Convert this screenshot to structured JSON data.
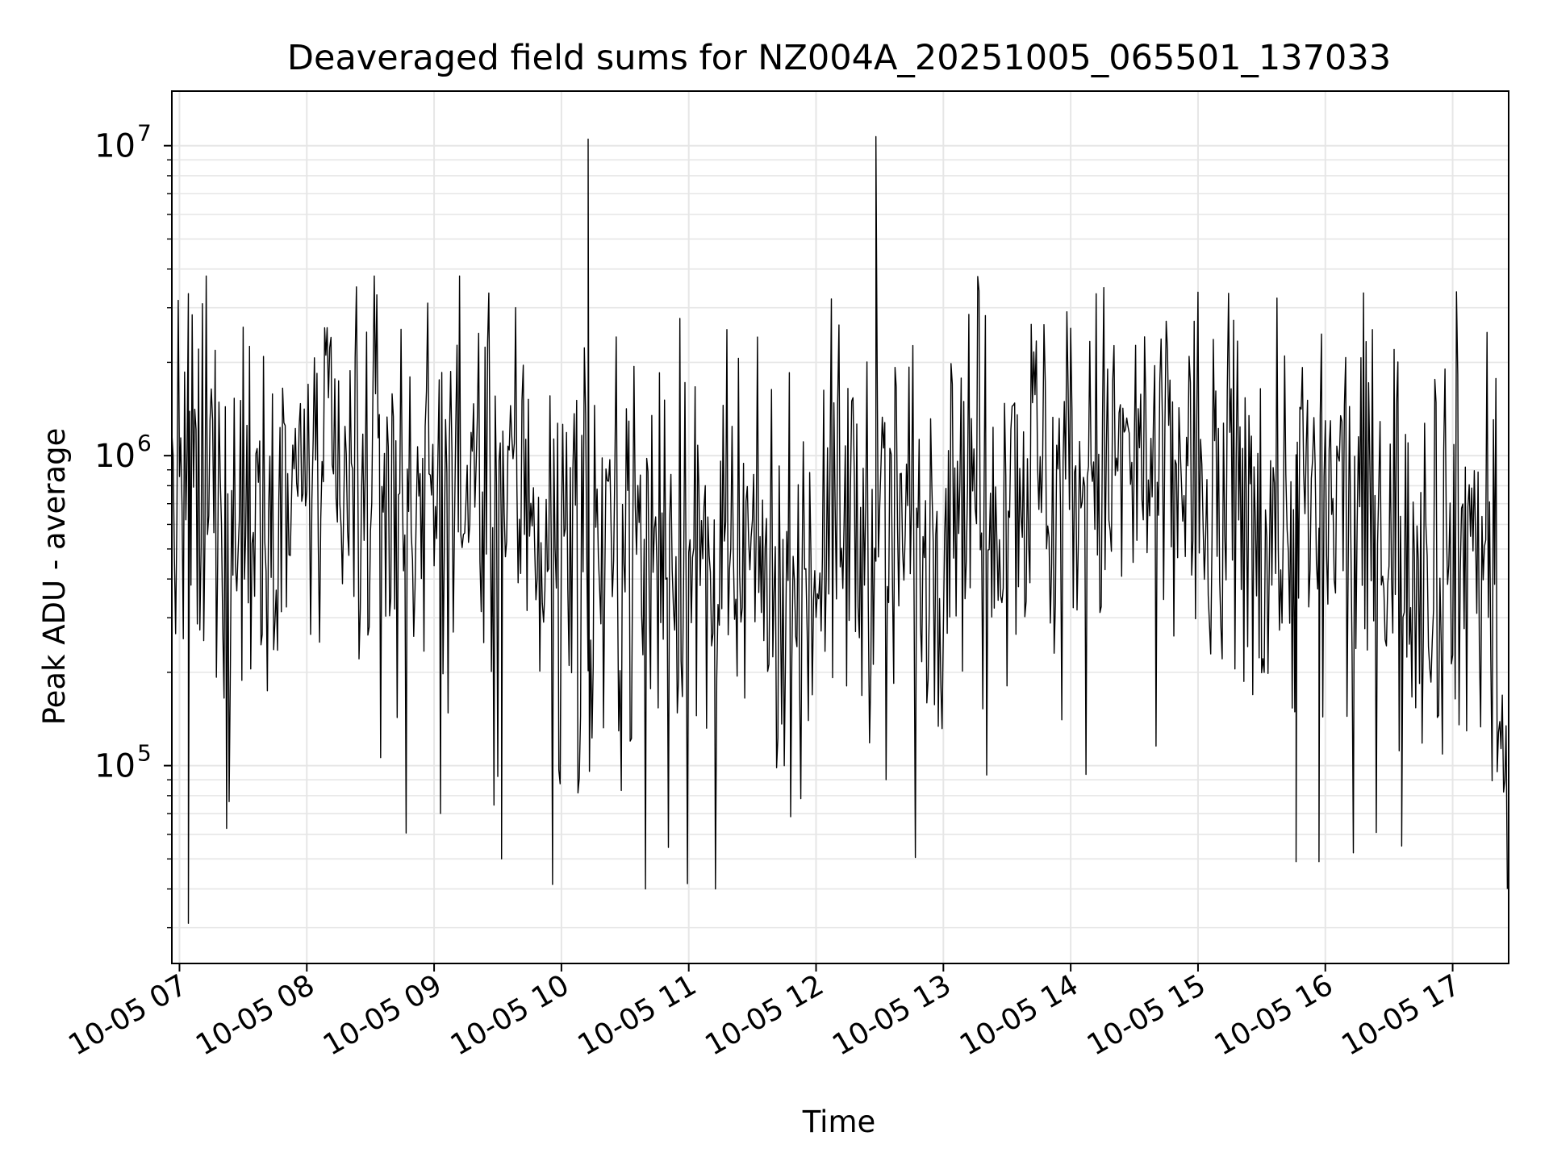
{
  "chart_data": {
    "type": "line",
    "title": "Deaveraged field sums for NZ004A_20251005_065501_137033",
    "xlabel": "Time",
    "ylabel": "Peak ADU - average",
    "yscale": "log",
    "ylim": [
      23000,
      15000000
    ],
    "xlim_hours": [
      6.94,
      17.44
    ],
    "grid": true,
    "line_color": "#000000",
    "x_ticks": [
      {
        "value": 7,
        "label": "10-05 07"
      },
      {
        "value": 8,
        "label": "10-05 08"
      },
      {
        "value": 9,
        "label": "10-05 09"
      },
      {
        "value": 10,
        "label": "10-05 10"
      },
      {
        "value": 11,
        "label": "10-05 11"
      },
      {
        "value": 12,
        "label": "10-05 12"
      },
      {
        "value": 13,
        "label": "10-05 13"
      },
      {
        "value": 14,
        "label": "10-05 14"
      },
      {
        "value": 15,
        "label": "10-05 15"
      },
      {
        "value": 16,
        "label": "10-05 16"
      },
      {
        "value": 17,
        "label": "10-05 17"
      }
    ],
    "y_ticks": [
      {
        "value": 100000,
        "base": "10",
        "exp": "5"
      },
      {
        "value": 1000000,
        "base": "10",
        "exp": "6"
      },
      {
        "value": 10000000,
        "base": "10",
        "exp": "7"
      }
    ],
    "series": [
      {
        "name": "Peak ADU - average",
        "x_start_hours": 6.94,
        "x_step_hours": 0.01,
        "spikes": [
          {
            "x": 10.21,
            "y": 10500000
          },
          {
            "x": 12.47,
            "y": 10700000
          }
        ],
        "dips": [
          {
            "x": 7.07,
            "y": 31000
          },
          {
            "x": 9.53,
            "y": 50000
          },
          {
            "x": 15.77,
            "y": 49000
          },
          {
            "x": 15.95,
            "y": 49000
          },
          {
            "x": 16.6,
            "y": 55000
          }
        ],
        "segments": [
          {
            "from": 6.94,
            "to": 7.6,
            "median": 700000,
            "spread": 0.35
          },
          {
            "from": 7.6,
            "to": 9.8,
            "median": 800000,
            "spread": 0.3
          },
          {
            "from": 9.8,
            "to": 11.0,
            "median": 550000,
            "spread": 0.33
          },
          {
            "from": 11.0,
            "to": 12.0,
            "median": 400000,
            "spread": 0.3
          },
          {
            "from": 12.0,
            "to": 13.0,
            "median": 600000,
            "spread": 0.32
          },
          {
            "from": 13.0,
            "to": 15.0,
            "median": 900000,
            "spread": 0.3
          },
          {
            "from": 15.0,
            "to": 16.5,
            "median": 650000,
            "spread": 0.33
          },
          {
            "from": 16.5,
            "to": 17.35,
            "median": 550000,
            "spread": 0.35
          },
          {
            "from": 17.35,
            "to": 17.44,
            "median": 120000,
            "spread": 0.15
          }
        ]
      }
    ]
  }
}
